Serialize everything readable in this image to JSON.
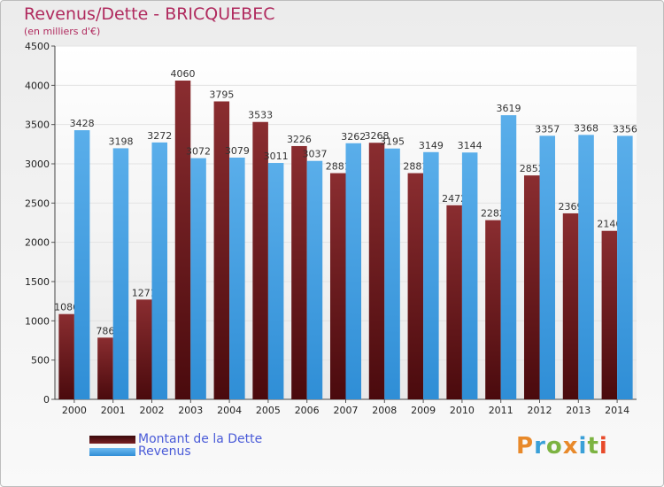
{
  "title": "Revenus/Dette - BRICQUEBEC",
  "subtitle": "(en milliers d'€)",
  "logo": {
    "text": "Proxiti",
    "colors": [
      "#e8892a",
      "#3aa0d8",
      "#7cb342",
      "#e8892a",
      "#3aa0d8",
      "#7cb342",
      "#e84a2a"
    ]
  },
  "colors": {
    "dette": "#7a1f22",
    "revenus": "#3f9ee0",
    "title": "#b02a5e",
    "legend_text": "#4a5bd8"
  },
  "legend": [
    {
      "label": "Montant de la Dette",
      "color": "#6b1518"
    },
    {
      "label": "Revenus",
      "color": "#3f9ee0"
    }
  ],
  "chart_data": {
    "type": "bar",
    "title": "Revenus/Dette - BRICQUEBEC",
    "subtitle": "(en milliers d'€)",
    "categories": [
      "2000",
      "2001",
      "2002",
      "2003",
      "2004",
      "2005",
      "2006",
      "2007",
      "2008",
      "2009",
      "2010",
      "2011",
      "2012",
      "2013",
      "2014"
    ],
    "series": [
      {
        "name": "Montant de la Dette",
        "values": [
          1086,
          786,
          1271,
          4060,
          3795,
          3533,
          3226,
          2881,
          3268,
          2881,
          2472,
          2282,
          2852,
          2369,
          2146
        ],
        "labels": [
          "1086",
          "786",
          "1271",
          "4060",
          "3795",
          "3533",
          "3226",
          "2881",
          "3268",
          "2881",
          "2472",
          "2282",
          "2852",
          "2369",
          "2146"
        ]
      },
      {
        "name": "Revenus",
        "values": [
          3428,
          3198,
          3272,
          3072,
          3079,
          3011,
          3037,
          3262,
          3195,
          3149,
          3144,
          3619,
          3357,
          3368,
          3356
        ],
        "labels": [
          "3428",
          "3198",
          "3272",
          "3072",
          "3079",
          "3011",
          "3037",
          "3262",
          "3195",
          "3149",
          "3144",
          "3619",
          "3357",
          "3368",
          "3356"
        ]
      }
    ],
    "ylim": [
      0,
      4500
    ],
    "yticks": [
      0,
      500,
      1000,
      1500,
      2000,
      2500,
      3000,
      3500,
      4000,
      4500
    ],
    "grid": true,
    "legend_position": "bottom-left"
  }
}
